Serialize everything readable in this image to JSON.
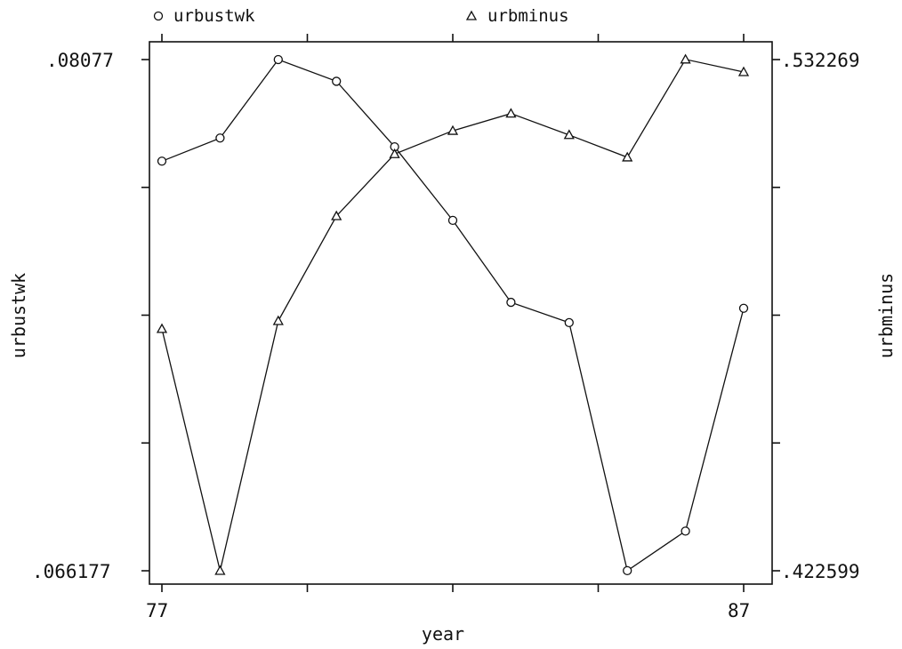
{
  "chart_data": {
    "type": "line",
    "x": [
      77,
      78,
      79,
      80,
      81,
      82,
      83,
      84,
      85,
      86,
      87
    ],
    "xlabel": "year",
    "x_tick_labels": [
      "77",
      "87"
    ],
    "xlim": [
      77,
      87
    ],
    "series": [
      {
        "name": "urbustwk",
        "marker": "circle",
        "axis": "left",
        "values": [
          0.07787,
          0.07853,
          0.08077,
          0.08015,
          0.07828,
          0.07618,
          0.07384,
          0.07326,
          0.06618,
          0.06731,
          0.07367
        ]
      },
      {
        "name": "urbminus",
        "marker": "triangle",
        "axis": "right",
        "values": [
          0.4745,
          0.4226,
          0.4762,
          0.4987,
          0.512,
          0.517,
          0.5207,
          0.5161,
          0.5113,
          0.5323,
          0.5296
        ]
      }
    ],
    "left_axis": {
      "label": "urbustwk",
      "ylim": [
        0.066177,
        0.08077
      ],
      "tick_labels": [
        ".08077",
        ".066177"
      ]
    },
    "right_axis": {
      "label": "urbminus",
      "ylim": [
        0.422599,
        0.532269
      ],
      "tick_labels": [
        ".532269",
        ".422599"
      ]
    },
    "legend": {
      "placement": "top",
      "entries": [
        {
          "symbol": "o",
          "text": "urbustwk"
        },
        {
          "symbol": "Δ",
          "text": "urbminus"
        }
      ]
    },
    "grid": false
  }
}
